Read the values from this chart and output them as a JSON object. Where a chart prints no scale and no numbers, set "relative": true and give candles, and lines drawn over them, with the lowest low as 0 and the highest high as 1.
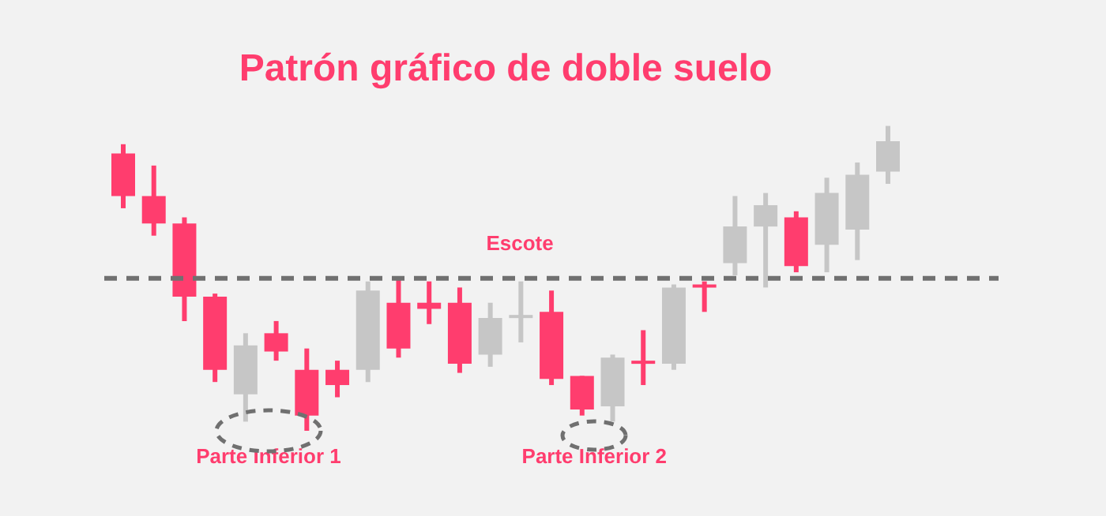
{
  "chart_data": {
    "type": "candlestick",
    "title": "Patrón gráfico de doble suelo",
    "relative": true,
    "categories": [
      null,
      null,
      null,
      null,
      null,
      null,
      null,
      null,
      null,
      null,
      null,
      null,
      null,
      null,
      null,
      null,
      null,
      null,
      null,
      null,
      null,
      null,
      null,
      null,
      null,
      null
    ],
    "ohlc": [
      [
        0.91,
        0.94,
        0.73,
        0.77
      ],
      [
        0.77,
        0.87,
        0.64,
        0.68
      ],
      [
        0.68,
        0.7,
        0.36,
        0.44
      ],
      [
        0.44,
        0.45,
        0.16,
        0.2
      ],
      [
        0.12,
        0.32,
        0.03,
        0.28
      ],
      [
        0.32,
        0.36,
        0.23,
        0.26
      ],
      [
        0.2,
        0.27,
        0,
        0.05
      ],
      [
        0.2,
        0.23,
        0.11,
        0.15
      ],
      [
        0.2,
        0.49,
        0.16,
        0.46
      ],
      [
        0.42,
        0.5,
        0.24,
        0.27
      ],
      [
        0.42,
        0.49,
        0.35,
        0.4
      ],
      [
        0.42,
        0.47,
        0.19,
        0.22
      ],
      [
        0.25,
        0.42,
        0.21,
        0.37
      ],
      [
        0.37,
        0.49,
        0.29,
        0.38
      ],
      [
        0.39,
        0.46,
        0.15,
        0.17
      ],
      [
        0.18,
        0.18,
        0.05,
        0.07
      ],
      [
        0.08,
        0.25,
        0.03,
        0.24
      ],
      [
        0.23,
        0.33,
        0.15,
        0.22
      ],
      [
        0.22,
        0.48,
        0.2,
        0.47
      ],
      [
        0.48,
        0.49,
        0.39,
        0.47
      ],
      [
        0.55,
        0.77,
        0.51,
        0.67
      ],
      [
        0.67,
        0.78,
        0.47,
        0.74
      ],
      [
        0.7,
        0.72,
        0.52,
        0.54
      ],
      [
        0.61,
        0.83,
        0.52,
        0.78
      ],
      [
        0.66,
        0.88,
        0.56,
        0.84
      ],
      [
        0.85,
        1,
        0.81,
        0.95
      ]
    ],
    "colors": [
      "#ff3d6e",
      "#ff3d6e",
      "#ff3d6e",
      "#ff3d6e",
      "#c6c6c6",
      "#ff3d6e",
      "#ff3d6e",
      "#ff3d6e",
      "#c6c6c6",
      "#ff3d6e",
      "#ff3d6e",
      "#ff3d6e",
      "#c6c6c6",
      "#c6c6c6",
      "#ff3d6e",
      "#ff3d6e",
      "#c6c6c6",
      "#ff3d6e",
      "#c6c6c6",
      "#ff3d6e",
      "#c6c6c6",
      "#c6c6c6",
      "#ff3d6e",
      "#c6c6c6",
      "#c6c6c6",
      "#c6c6c6"
    ],
    "ref_lines": [
      {
        "axis": "y",
        "value": 0.5,
        "label": "Escote",
        "color": "#707070",
        "line_style": "dashed"
      }
    ],
    "annotations": [
      "Parte Inferior 1",
      "Parte Inferior 2"
    ]
  }
}
